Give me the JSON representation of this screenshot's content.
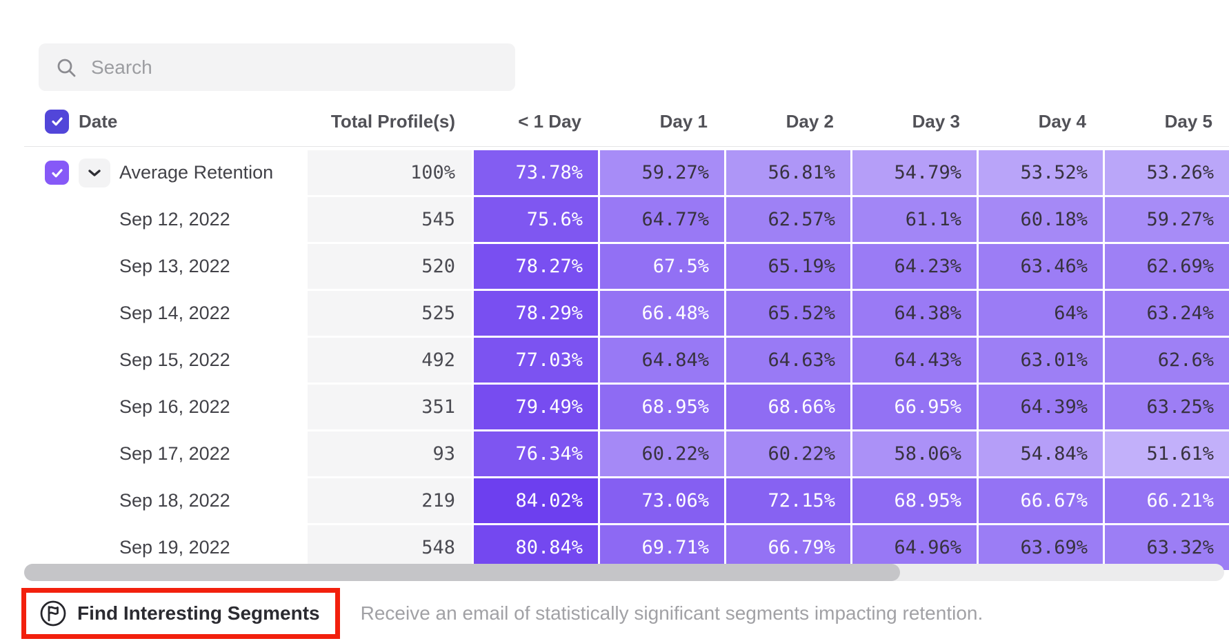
{
  "search": {
    "placeholder": "Search"
  },
  "table": {
    "date_header": "Date",
    "columns": [
      "Total Profile(s)",
      "< 1 Day",
      "Day 1",
      "Day 2",
      "Day 3",
      "Day 4",
      "Day 5"
    ],
    "heat": {
      "min": 51.61,
      "max": 84.02,
      "white_text_threshold": 66
    },
    "rows": [
      {
        "label": "Average Retention",
        "is_average": true,
        "total": "100%",
        "values": [
          "73.78%",
          "59.27%",
          "56.81%",
          "54.79%",
          "53.52%",
          "53.26%"
        ]
      },
      {
        "label": "Sep 12, 2022",
        "is_average": false,
        "total": "545",
        "values": [
          "75.6%",
          "64.77%",
          "62.57%",
          "61.1%",
          "60.18%",
          "59.27%"
        ]
      },
      {
        "label": "Sep 13, 2022",
        "is_average": false,
        "total": "520",
        "values": [
          "78.27%",
          "67.5%",
          "65.19%",
          "64.23%",
          "63.46%",
          "62.69%"
        ]
      },
      {
        "label": "Sep 14, 2022",
        "is_average": false,
        "total": "525",
        "values": [
          "78.29%",
          "66.48%",
          "65.52%",
          "64.38%",
          "64%",
          "63.24%"
        ]
      },
      {
        "label": "Sep 15, 2022",
        "is_average": false,
        "total": "492",
        "values": [
          "77.03%",
          "64.84%",
          "64.63%",
          "64.43%",
          "63.01%",
          "62.6%"
        ]
      },
      {
        "label": "Sep 16, 2022",
        "is_average": false,
        "total": "351",
        "values": [
          "79.49%",
          "68.95%",
          "68.66%",
          "66.95%",
          "64.39%",
          "63.25%"
        ]
      },
      {
        "label": "Sep 17, 2022",
        "is_average": false,
        "total": "93",
        "values": [
          "76.34%",
          "60.22%",
          "60.22%",
          "58.06%",
          "54.84%",
          "51.61%"
        ]
      },
      {
        "label": "Sep 18, 2022",
        "is_average": false,
        "total": "219",
        "values": [
          "84.02%",
          "73.06%",
          "72.15%",
          "68.95%",
          "66.67%",
          "66.21%"
        ]
      },
      {
        "label": "Sep 19, 2022",
        "is_average": false,
        "total": "548",
        "values": [
          "80.84%",
          "69.71%",
          "66.79%",
          "64.96%",
          "63.69%",
          "63.32%"
        ]
      }
    ]
  },
  "footer": {
    "button_label": "Find Interesting Segments",
    "description": "Receive an email of statistically significant segments impacting retention."
  },
  "colors": {
    "select_all_checkbox": "#5246D9",
    "row_checkbox": "#8659F7",
    "heat_dark": "#6D3FEF",
    "heat_light": "#C2B0FA",
    "heat_text_dark": "#37323E",
    "highlight_box_red": "#F2200D"
  }
}
